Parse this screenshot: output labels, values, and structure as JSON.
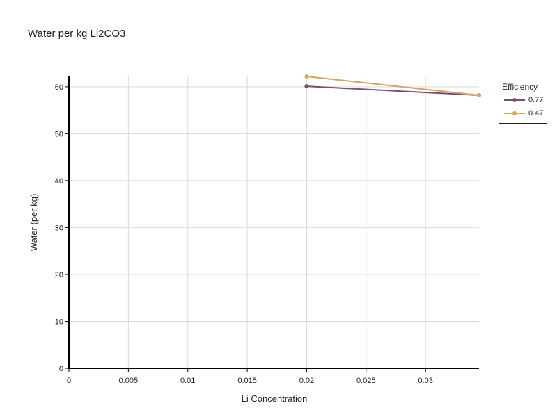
{
  "chart_data": {
    "type": "line",
    "title": "Water per kg Li2CO3",
    "xlabel": "Li Concentration",
    "ylabel": "Water (per kg)",
    "xlim": [
      0,
      0.0345
    ],
    "ylim": [
      0,
      62.2
    ],
    "x_ticks": [
      0,
      0.005,
      0.01,
      0.015,
      0.02,
      0.025,
      0.03
    ],
    "x_tick_labels": [
      "0",
      "0.005",
      "0.01",
      "0.015",
      "0.02",
      "0.025",
      "0.03"
    ],
    "y_ticks": [
      0,
      10,
      20,
      30,
      40,
      50,
      60
    ],
    "y_tick_labels": [
      "0",
      "10",
      "20",
      "30",
      "40",
      "50",
      "60"
    ],
    "grid": true,
    "legend": {
      "title": "Efficiency",
      "placement": "top-right-outside"
    },
    "series": [
      {
        "name": "0.77",
        "color": "#7b4f6e",
        "x": [
          0.02,
          0.0345
        ],
        "y": [
          60.1,
          58.2
        ]
      },
      {
        "name": "0.47",
        "color": "#d4a55c",
        "x": [
          0.02,
          0.0345
        ],
        "y": [
          62.2,
          58.2
        ]
      }
    ]
  }
}
